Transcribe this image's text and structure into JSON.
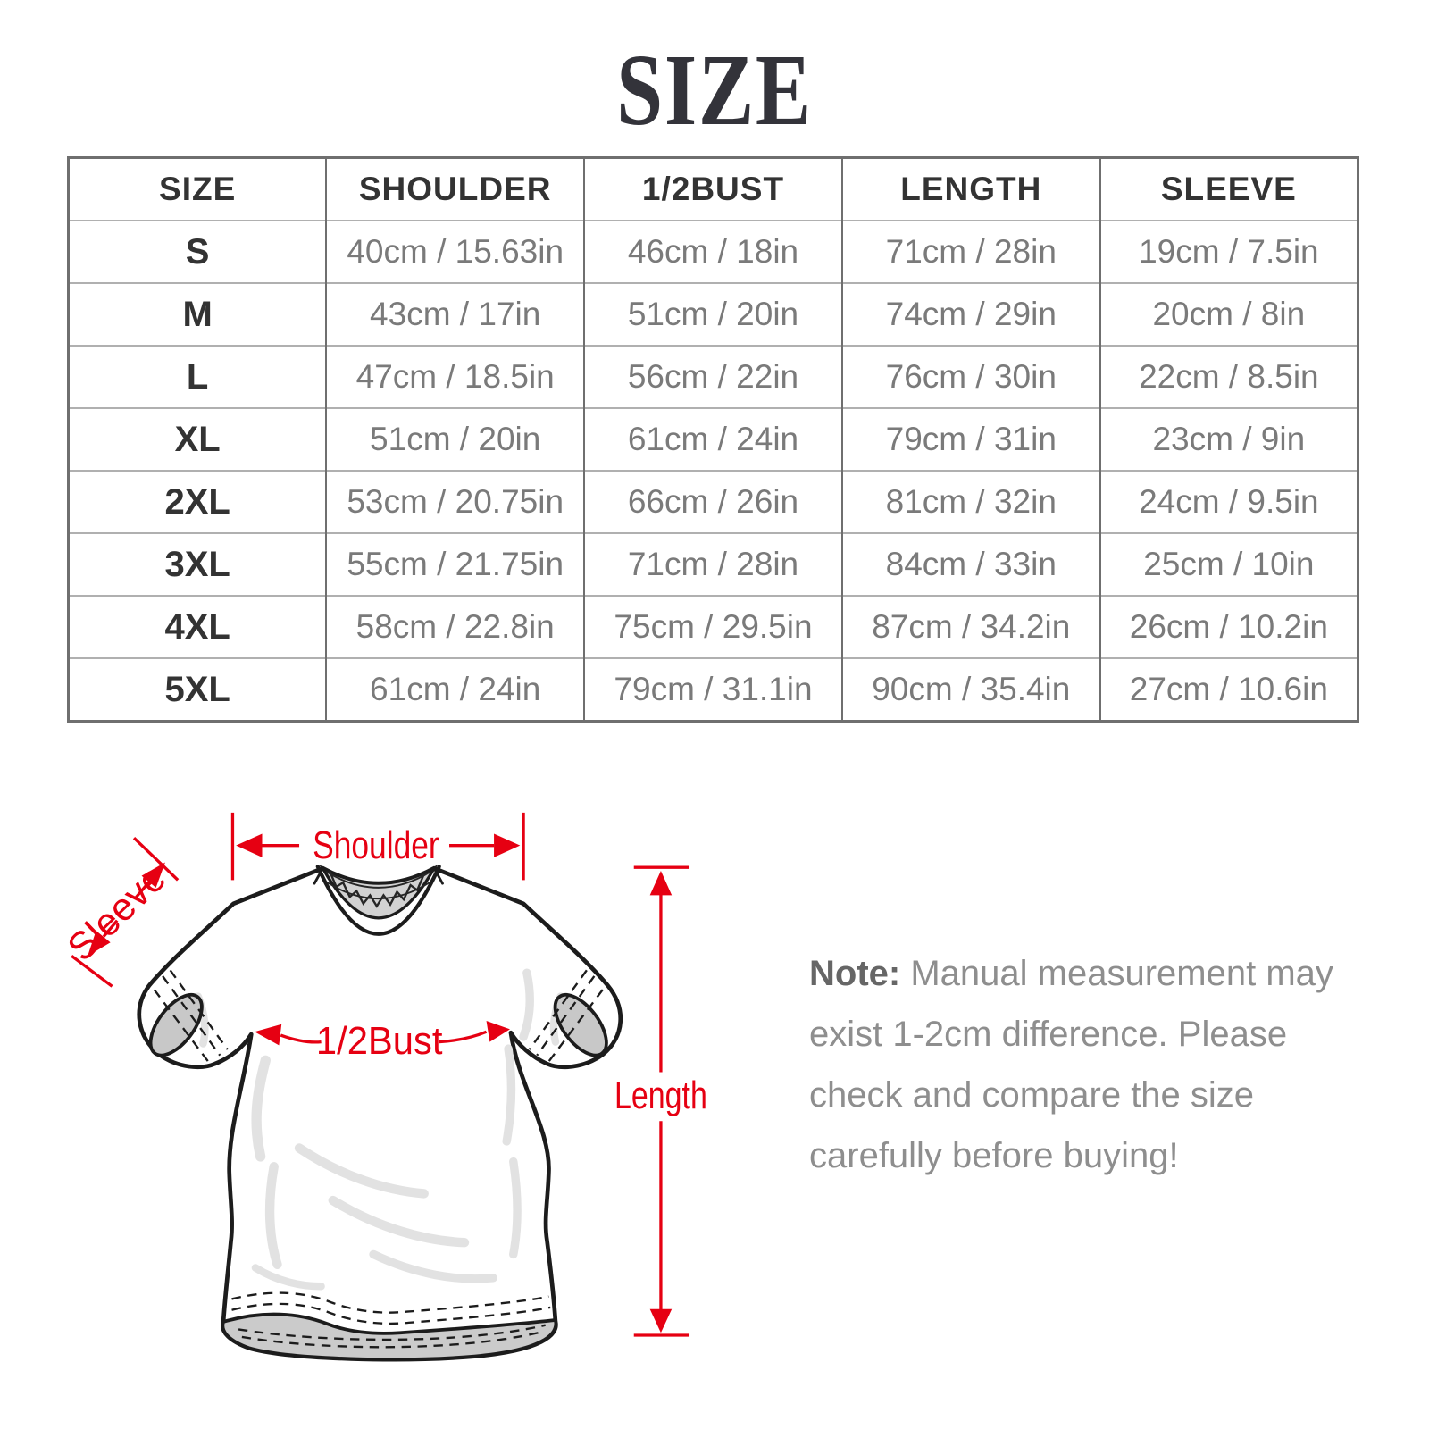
{
  "title": "SIZE",
  "table": {
    "columns": [
      "SIZE",
      "SHOULDER",
      "1/2BUST",
      "LENGTH",
      "SLEEVE"
    ],
    "rows": [
      [
        "S",
        "40cm / 15.63in",
        "46cm / 18in",
        "71cm / 28in",
        "19cm / 7.5in"
      ],
      [
        "M",
        "43cm / 17in",
        "51cm / 20in",
        "74cm / 29in",
        "20cm / 8in"
      ],
      [
        "L",
        "47cm / 18.5in",
        "56cm / 22in",
        "76cm / 30in",
        "22cm / 8.5in"
      ],
      [
        "XL",
        "51cm / 20in",
        "61cm / 24in",
        "79cm / 31in",
        "23cm / 9in"
      ],
      [
        "2XL",
        "53cm / 20.75in",
        "66cm / 26in",
        "81cm / 32in",
        "24cm / 9.5in"
      ],
      [
        "3XL",
        "55cm / 21.75in",
        "71cm / 28in",
        "84cm / 33in",
        "25cm / 10in"
      ],
      [
        "4XL",
        "58cm / 22.8in",
        "75cm / 29.5in",
        "87cm / 34.2in",
        "26cm / 10.2in"
      ],
      [
        "5XL",
        "61cm / 24in",
        "79cm / 31.1in",
        "90cm / 35.4in",
        "27cm / 10.6in"
      ]
    ]
  },
  "diagram": {
    "labels": {
      "shoulder": "Shoulder",
      "sleeve": "Sleeve",
      "half_bust": "1/2Bust",
      "length": "Length"
    }
  },
  "note": {
    "prefix": "Note:",
    "lines": [
      "Manual measurement may",
      "exist 1-2cm difference. Please",
      "check and compare the size",
      "carefully before buying!"
    ]
  },
  "colors": {
    "accent_red": "#e60012",
    "title_text": "#33333a",
    "header_text": "#333333",
    "value_text": "#7a7a7a",
    "table_border_dark": "#6f6f6f",
    "table_border_light": "#b0b0b0",
    "note_prefix": "#666666",
    "note_body": "#8e8e8e",
    "drawing_outline": "#1c1c1c",
    "collar_gray": "#d2d2d2"
  }
}
